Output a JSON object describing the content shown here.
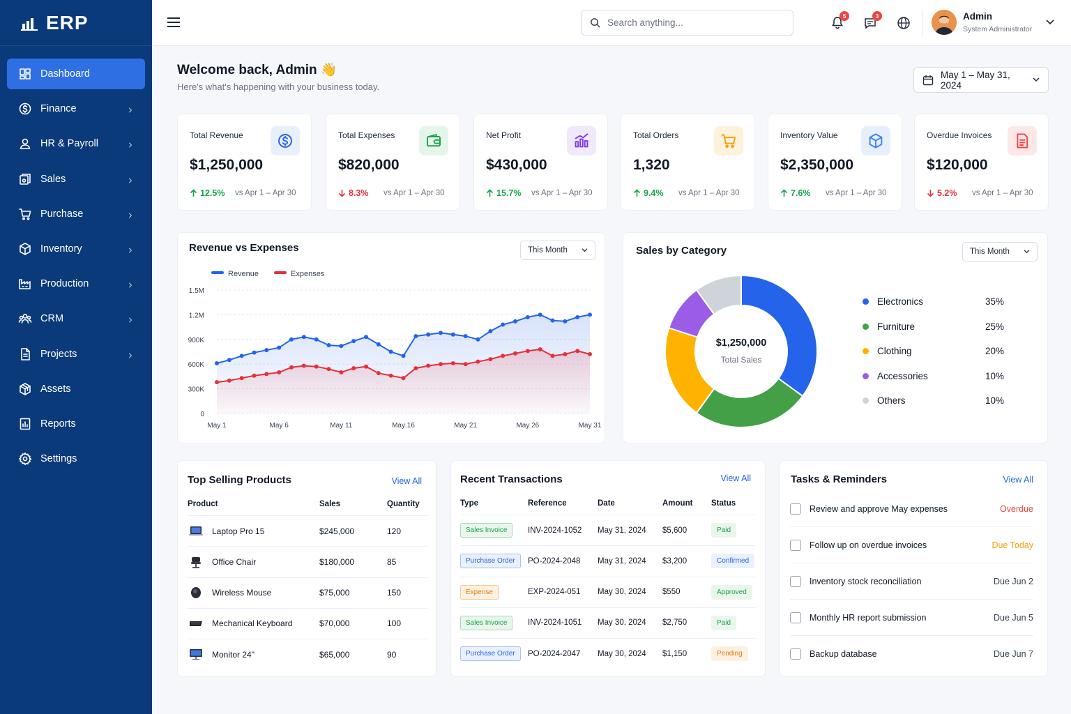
{
  "brand": {
    "name": "ERP"
  },
  "sidebar": {
    "items": [
      {
        "label": "Dashboard",
        "icon": "dashboard-icon",
        "active": true,
        "has_children": false
      },
      {
        "label": "Finance",
        "icon": "finance-icon",
        "has_children": true
      },
      {
        "label": "HR & Payroll",
        "icon": "user-icon",
        "has_children": true
      },
      {
        "label": "Sales",
        "icon": "sales-icon",
        "has_children": true
      },
      {
        "label": "Purchase",
        "icon": "cart-icon",
        "has_children": true
      },
      {
        "label": "Inventory",
        "icon": "box-icon",
        "has_children": true
      },
      {
        "label": "Production",
        "icon": "factory-icon",
        "has_children": true
      },
      {
        "label": "CRM",
        "icon": "people-icon",
        "has_children": true
      },
      {
        "label": "Projects",
        "icon": "document-icon",
        "has_children": true
      },
      {
        "label": "Assets",
        "icon": "assets-icon",
        "has_children": false
      },
      {
        "label": "Reports",
        "icon": "reports-icon",
        "has_children": false
      },
      {
        "label": "Settings",
        "icon": "gear-icon",
        "has_children": false
      }
    ]
  },
  "topbar": {
    "search_placeholder": "Search anything...",
    "notifications_count": "5",
    "messages_count": "3",
    "user": {
      "name": "Admin",
      "role": "System Administrator"
    }
  },
  "header": {
    "title": "Welcome back, Admin 👋",
    "subtitle": "Here's what's happening with your business today.",
    "date_range": "May 1 – May 31, 2024"
  },
  "kpis": [
    {
      "title": "Total Revenue",
      "value": "$1,250,000",
      "change": "12.5%",
      "direction": "up",
      "compare": "vs Apr 1 – Apr 30",
      "icon": "dollar-icon",
      "color": "#2563eb",
      "bg": "#e8effd"
    },
    {
      "title": "Total Expenses",
      "value": "$820,000",
      "change": "8.3%",
      "direction": "down",
      "compare": "vs Apr 1 – Apr 30",
      "icon": "wallet-icon",
      "color": "#16a34a",
      "bg": "#e6f5ea"
    },
    {
      "title": "Net Profit",
      "value": "$430,000",
      "change": "15.7%",
      "direction": "up",
      "compare": "vs Apr 1 – Apr 30",
      "icon": "bar-chart-icon",
      "color": "#7c3aed",
      "bg": "#efe9fb"
    },
    {
      "title": "Total Orders",
      "value": "1,320",
      "change": "9.4%",
      "direction": "up",
      "compare": "vs Apr 1 – Apr 30",
      "icon": "cart-icon",
      "color": "#f59e0b",
      "bg": "#fdf2dc"
    },
    {
      "title": "Inventory Value",
      "value": "$2,350,000",
      "change": "7.6%",
      "direction": "up",
      "compare": "vs Apr 1 – Apr 30",
      "icon": "box-icon",
      "color": "#3b82f6",
      "bg": "#e6effb"
    },
    {
      "title": "Overdue Invoices",
      "value": "$120,000",
      "change": "5.2%",
      "direction": "down",
      "compare": "vs Apr 1 – Apr 30",
      "icon": "invoice-icon",
      "color": "#ef4444",
      "bg": "#fde8e8"
    }
  ],
  "revenue_panel": {
    "title": "Revenue vs Expenses",
    "filter": "This Month"
  },
  "category_panel": {
    "title": "Sales by Category",
    "filter": "This Month",
    "center_value": "$1,250,000",
    "center_label": "Total Sales"
  },
  "chart_data": [
    {
      "type": "line",
      "title": "Revenue vs Expenses",
      "x": [
        1,
        2,
        3,
        4,
        5,
        6,
        7,
        8,
        9,
        10,
        11,
        12,
        13,
        14,
        15,
        16,
        17,
        18,
        19,
        20,
        21,
        22,
        23,
        24,
        25,
        26,
        27,
        28,
        29,
        30,
        31
      ],
      "x_tick_labels": [
        "May 1",
        "May 6",
        "May 11",
        "May 16",
        "May 21",
        "May 26",
        "May 31"
      ],
      "y_tick_labels": [
        "0",
        "300K",
        "600K",
        "900K",
        "1.2M",
        "1.5M"
      ],
      "ylim": [
        0,
        1500000
      ],
      "legend": "top-left",
      "grid": true,
      "series": [
        {
          "name": "Revenue",
          "color": "#2563eb",
          "values": [
            610000,
            650000,
            700000,
            740000,
            770000,
            800000,
            900000,
            930000,
            900000,
            830000,
            820000,
            880000,
            930000,
            840000,
            750000,
            700000,
            940000,
            960000,
            980000,
            960000,
            940000,
            900000,
            1000000,
            1080000,
            1120000,
            1170000,
            1200000,
            1130000,
            1120000,
            1170000,
            1200000
          ]
        },
        {
          "name": "Expenses",
          "color": "#e5303a",
          "values": [
            380000,
            400000,
            430000,
            460000,
            480000,
            500000,
            560000,
            580000,
            570000,
            540000,
            500000,
            550000,
            570000,
            490000,
            460000,
            430000,
            550000,
            580000,
            600000,
            610000,
            600000,
            630000,
            660000,
            700000,
            730000,
            760000,
            780000,
            700000,
            720000,
            760000,
            720000
          ]
        }
      ]
    },
    {
      "type": "pie",
      "title": "Sales by Category",
      "categories": [
        "Electronics",
        "Furniture",
        "Clothing",
        "Accessories",
        "Others"
      ],
      "values": [
        35,
        25,
        20,
        10,
        10
      ],
      "labels": [
        "35%",
        "25%",
        "20%",
        "10%",
        "10%"
      ],
      "colors": [
        "#2563eb",
        "#43a047",
        "#ffb300",
        "#9b5de5",
        "#cfd3da"
      ],
      "legend": "right"
    }
  ],
  "top_products": {
    "title": "Top Selling Products",
    "view_all": "View All",
    "columns": [
      "Product",
      "Sales",
      "Quantity"
    ],
    "rows": [
      {
        "name": "Laptop Pro 15",
        "sales": "$245,000",
        "qty": "120",
        "icon": "laptop-icon"
      },
      {
        "name": "Office Chair",
        "sales": "$180,000",
        "qty": "85",
        "icon": "chair-icon"
      },
      {
        "name": "Wireless Mouse",
        "sales": "$75,000",
        "qty": "150",
        "icon": "mouse-icon"
      },
      {
        "name": "Mechanical Keyboard",
        "sales": "$70,000",
        "qty": "100",
        "icon": "keyboard-icon"
      },
      {
        "name": "Monitor 24\"",
        "sales": "$65,000",
        "qty": "90",
        "icon": "monitor-icon"
      }
    ]
  },
  "transactions": {
    "title": "Recent Transactions",
    "view_all": "View All",
    "columns": [
      "Type",
      "Reference",
      "Date",
      "Amount",
      "Status"
    ],
    "rows": [
      {
        "type": "Sales Invoice",
        "type_color": "#16a34a",
        "type_bg": "#eaf6ec",
        "ref": "INV-2024-1052",
        "date": "May 31, 2024",
        "amount": "$5,600",
        "status": "Paid",
        "status_color": "#16a34a",
        "status_bg": "#eaf6ec"
      },
      {
        "type": "Purchase Order",
        "type_color": "#2563eb",
        "type_bg": "#eaf0fd",
        "ref": "PO-2024-2048",
        "date": "May 31, 2024",
        "amount": "$3,200",
        "status": "Confirmed",
        "status_color": "#2563eb",
        "status_bg": "#eaf0fd"
      },
      {
        "type": "Expense",
        "type_color": "#ea7a0b",
        "type_bg": "#fdf1e2",
        "ref": "EXP-2024-051",
        "date": "May 30, 2024",
        "amount": "$550",
        "status": "Approved",
        "status_color": "#16a34a",
        "status_bg": "#eaf6ec"
      },
      {
        "type": "Sales Invoice",
        "type_color": "#16a34a",
        "type_bg": "#eaf6ec",
        "ref": "INV-2024-1051",
        "date": "May 30, 2024",
        "amount": "$2,750",
        "status": "Paid",
        "status_color": "#16a34a",
        "status_bg": "#eaf6ec"
      },
      {
        "type": "Purchase Order",
        "type_color": "#2563eb",
        "type_bg": "#eaf0fd",
        "ref": "PO-2024-2047",
        "date": "May 30, 2024",
        "amount": "$1,150",
        "status": "Pending",
        "status_color": "#ea7a0b",
        "status_bg": "#fdf1e2"
      }
    ]
  },
  "tasks": {
    "title": "Tasks & Reminders",
    "view_all": "View All",
    "rows": [
      {
        "label": "Review and approve May expenses",
        "due": "Overdue",
        "due_color": "#ef4444"
      },
      {
        "label": "Follow up on overdue invoices",
        "due": "Due Today",
        "due_color": "#f59e0b"
      },
      {
        "label": "Inventory stock reconciliation",
        "due": "Due Jun 2",
        "due_color": "#374151"
      },
      {
        "label": "Monthly HR report submission",
        "due": "Due Jun 5",
        "due_color": "#374151"
      },
      {
        "label": "Backup database",
        "due": "Due Jun 7",
        "due_color": "#374151"
      }
    ]
  }
}
